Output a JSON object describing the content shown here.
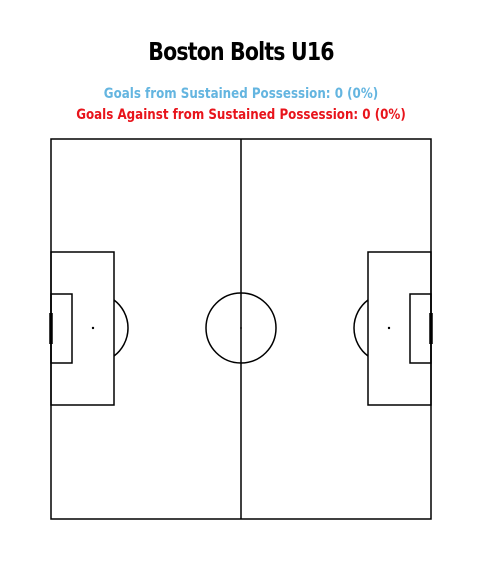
{
  "title": "Boston Bolts U16",
  "stats": {
    "for_label": "Goals from Sustained Possession: 0 (0%)",
    "for_color": "#64b5e0",
    "against_label": "Goals Against from Sustained Possession: 0 (0%)",
    "against_color": "#e8141b"
  },
  "pitch": {
    "line_color": "#000000",
    "background": "#ffffff"
  }
}
